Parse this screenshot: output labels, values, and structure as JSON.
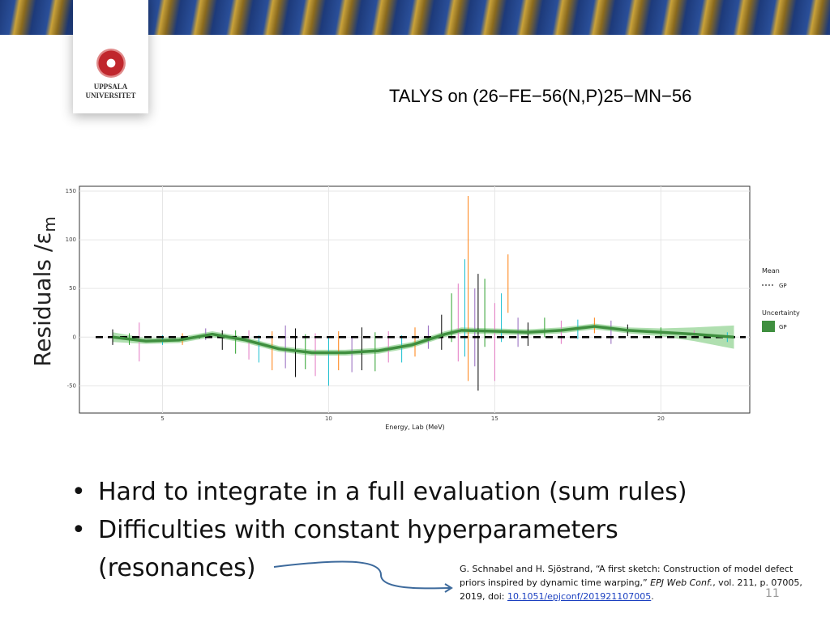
{
  "logo": {
    "line1": "UPPSALA",
    "line2": "UNIVERSITET"
  },
  "slide_title": "TALYS on (26−FE−56(N,P)25−MN−56",
  "bullets": [
    "Hard to integrate in a full evaluation (sum rules)",
    "Difficulties with constant hyperparameters",
    "(resonances)"
  ],
  "reference": {
    "line1": "G. Schnabel and H. Sjöstrand, “A first sketch: Construction of model defect",
    "line2a": "priors inspired by dynamic time warping,” ",
    "journal": "EPJ Web Conf.",
    "line2b": ", vol. 211, p. 07005,",
    "line3a": "2019, doi: ",
    "doi": "10.1051/epjconf/201921107005",
    "line3b": "."
  },
  "page_number": "11",
  "chart_data": {
    "type": "line",
    "y_label": "Residuals /ε",
    "y_label_sub": "m",
    "x_label": "Energy, Lab (MeV)",
    "xlim": [
      2.5,
      22.675
    ],
    "xticks": [
      5,
      10,
      15,
      20
    ],
    "ylim": [
      -78,
      155
    ],
    "yticks": [
      -50,
      0,
      50,
      100,
      150
    ],
    "grid": true,
    "mean_line": 0,
    "legend": {
      "mean_title": "Mean",
      "mean_label": "GP",
      "uncertainty_title": "Uncertainty",
      "uncertainty_label": "GP",
      "uncertainty_color": "#3f8f3f"
    },
    "gp": {
      "color": "#3f8f3f",
      "band_color": "#8fd18f",
      "x": [
        3.5,
        4.5,
        5.5,
        6.5,
        7.5,
        8.5,
        9.5,
        10.5,
        11.5,
        12.5,
        13.5,
        14,
        15,
        16,
        17,
        18,
        19,
        20,
        21,
        22.2
      ],
      "values": [
        0,
        -4,
        -3,
        3,
        -3,
        -12,
        -16,
        -16,
        -14,
        -8,
        3,
        7,
        6,
        5,
        7,
        11,
        7,
        5,
        3,
        0
      ],
      "lower": [
        -5,
        -7,
        -6,
        0,
        -6,
        -15,
        -19,
        -19,
        -17,
        -11,
        0,
        4,
        3,
        2,
        4,
        8,
        4,
        1,
        -4,
        -12
      ],
      "upper": [
        5,
        -1,
        0,
        6,
        0,
        -9,
        -13,
        -13,
        -11,
        -5,
        6,
        10,
        9,
        8,
        10,
        14,
        10,
        9,
        10,
        12
      ]
    },
    "points": {
      "x": [
        3.5,
        4.0,
        4.3,
        5.0,
        5.6,
        6.3,
        6.8,
        7.2,
        7.6,
        7.9,
        8.3,
        8.7,
        9.0,
        9.3,
        9.6,
        10.0,
        10.3,
        10.7,
        11.0,
        11.4,
        11.8,
        12.2,
        12.6,
        13.0,
        13.4,
        13.7,
        13.9,
        14.1,
        14.2,
        14.4,
        14.5,
        14.7,
        15.0,
        15.2,
        15.4,
        15.7,
        16.0,
        16.5,
        17.0,
        17.5,
        18.0,
        18.5,
        19.0,
        20.0,
        21.0,
        22.0
      ],
      "values": [
        0,
        -2,
        -5,
        -3,
        -2,
        3,
        -3,
        -5,
        -8,
        -12,
        -14,
        -10,
        -16,
        -15,
        -18,
        -25,
        -14,
        -18,
        -12,
        -15,
        -10,
        -12,
        -5,
        0,
        5,
        20,
        15,
        30,
        50,
        10,
        5,
        25,
        -5,
        20,
        55,
        5,
        3,
        10,
        5,
        8,
        12,
        5,
        7,
        5,
        3,
        0
      ],
      "errors": [
        8,
        6,
        20,
        5,
        6,
        6,
        10,
        12,
        15,
        14,
        20,
        22,
        25,
        18,
        22,
        25,
        20,
        18,
        22,
        20,
        16,
        14,
        15,
        12,
        18,
        25,
        40,
        50,
        95,
        40,
        60,
        35,
        40,
        25,
        30,
        15,
        12,
        10,
        12,
        10,
        8,
        12,
        6,
        5,
        4,
        5
      ],
      "colors": [
        "#000000",
        "#2ca02c",
        "#e377c2",
        "#17becf",
        "#ff7f0e",
        "#9467bd"
      ]
    }
  }
}
